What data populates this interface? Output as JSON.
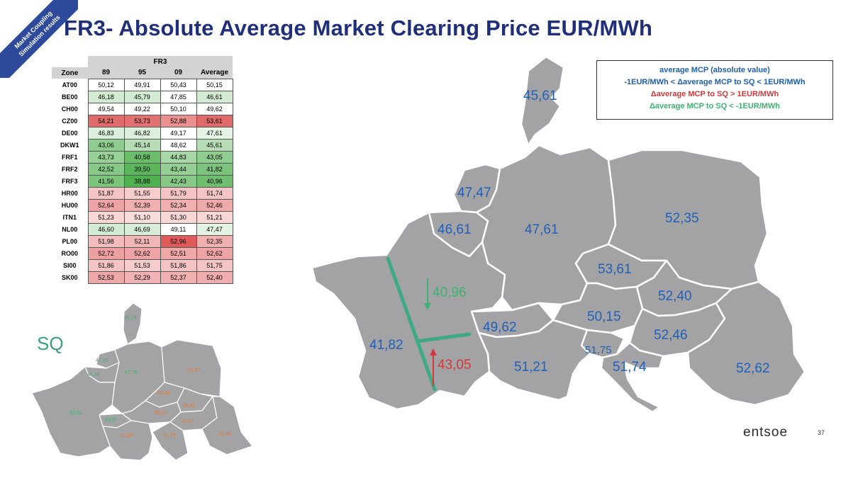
{
  "ribbon": {
    "line1": "Market Coupling",
    "line2": "Simulation results"
  },
  "title": "FR3- Absolute Average Market Clearing Price EUR/MWh",
  "colors": {
    "green": "#3cb371",
    "red": "#d23a3a",
    "blue": "#2060b8",
    "map_fill": "#a3a3a5",
    "teal_line": "#3daa84"
  },
  "table": {
    "group_header": "FR3",
    "headers": [
      "Zone",
      "89",
      "95",
      "09",
      "Average"
    ],
    "rows": [
      {
        "zone": "AT00",
        "cells": [
          {
            "v": "50,12",
            "bg": "#ffffff"
          },
          {
            "v": "49,91",
            "bg": "#ffffff"
          },
          {
            "v": "50,43",
            "bg": "#ffffff"
          },
          {
            "v": "50,15",
            "bg": "#ffffff"
          }
        ]
      },
      {
        "zone": "BE00",
        "cells": [
          {
            "v": "46,18",
            "bg": "#d3ead3"
          },
          {
            "v": "45,79",
            "bg": "#d3ead3"
          },
          {
            "v": "47,85",
            "bg": "#ffffff"
          },
          {
            "v": "46,61",
            "bg": "#d3ead3"
          }
        ]
      },
      {
        "zone": "CH00",
        "cells": [
          {
            "v": "49,54",
            "bg": "#ffffff"
          },
          {
            "v": "49,22",
            "bg": "#ffffff"
          },
          {
            "v": "50,10",
            "bg": "#ffffff"
          },
          {
            "v": "49,62",
            "bg": "#ffffff"
          }
        ]
      },
      {
        "zone": "CZ00",
        "cells": [
          {
            "v": "54,21",
            "bg": "#e06a6a"
          },
          {
            "v": "53,73",
            "bg": "#e27070"
          },
          {
            "v": "52,88",
            "bg": "#ea9090"
          },
          {
            "v": "53,61",
            "bg": "#e06a6a"
          }
        ]
      },
      {
        "zone": "DE00",
        "cells": [
          {
            "v": "46,83",
            "bg": "#dcefdc"
          },
          {
            "v": "46,82",
            "bg": "#dcefdc"
          },
          {
            "v": "49,17",
            "bg": "#ffffff"
          },
          {
            "v": "47,61",
            "bg": "#e6f3e6"
          }
        ]
      },
      {
        "zone": "DKW1",
        "cells": [
          {
            "v": "43,06",
            "bg": "#8fcc8f"
          },
          {
            "v": "45,14",
            "bg": "#b6ddb6"
          },
          {
            "v": "48,62",
            "bg": "#ffffff"
          },
          {
            "v": "45,61",
            "bg": "#b6ddb6"
          }
        ]
      },
      {
        "zone": "FRF1",
        "cells": [
          {
            "v": "43,73",
            "bg": "#98d098"
          },
          {
            "v": "40,58",
            "bg": "#6bbd6b"
          },
          {
            "v": "44,83",
            "bg": "#a8d7a8"
          },
          {
            "v": "43,05",
            "bg": "#8fcc8f"
          }
        ]
      },
      {
        "zone": "FRF2",
        "cells": [
          {
            "v": "42,52",
            "bg": "#88c988"
          },
          {
            "v": "39,50",
            "bg": "#5bb65b"
          },
          {
            "v": "43,44",
            "bg": "#95cf95"
          },
          {
            "v": "41,82",
            "bg": "#7cc37c"
          }
        ]
      },
      {
        "zone": "FRF3",
        "cells": [
          {
            "v": "41,56",
            "bg": "#7cc37c"
          },
          {
            "v": "38,88",
            "bg": "#4fb04f"
          },
          {
            "v": "42,43",
            "bg": "#88c988"
          },
          {
            "v": "40,96",
            "bg": "#70be70"
          }
        ]
      },
      {
        "zone": "HR00",
        "cells": [
          {
            "v": "51,87",
            "bg": "#f4c4c4"
          },
          {
            "v": "51,55",
            "bg": "#f6cccc"
          },
          {
            "v": "51,79",
            "bg": "#f4c4c4"
          },
          {
            "v": "51,74",
            "bg": "#f4c4c4"
          }
        ]
      },
      {
        "zone": "HU00",
        "cells": [
          {
            "v": "52,64",
            "bg": "#eea4a4"
          },
          {
            "v": "52,39",
            "bg": "#f0b0b0"
          },
          {
            "v": "52,34",
            "bg": "#f0b0b0"
          },
          {
            "v": "52,46",
            "bg": "#efaaaa"
          }
        ]
      },
      {
        "zone": "ITN1",
        "cells": [
          {
            "v": "51,23",
            "bg": "#f8d6d6"
          },
          {
            "v": "51,10",
            "bg": "#f9dcdc"
          },
          {
            "v": "51,30",
            "bg": "#f8d6d6"
          },
          {
            "v": "51,21",
            "bg": "#f8d6d6"
          }
        ]
      },
      {
        "zone": "NL00",
        "cells": [
          {
            "v": "46,60",
            "bg": "#d3ead3"
          },
          {
            "v": "46,69",
            "bg": "#d8ecd8"
          },
          {
            "v": "49,11",
            "bg": "#ffffff"
          },
          {
            "v": "47,47",
            "bg": "#e4f2e4"
          }
        ]
      },
      {
        "zone": "PL00",
        "cells": [
          {
            "v": "51,98",
            "bg": "#f2bcbc"
          },
          {
            "v": "52,11",
            "bg": "#f1b6b6"
          },
          {
            "v": "52,96",
            "bg": "#e05a5a"
          },
          {
            "v": "52,35",
            "bg": "#f0b0b0"
          }
        ]
      },
      {
        "zone": "RO00",
        "cells": [
          {
            "v": "52,72",
            "bg": "#eda0a0"
          },
          {
            "v": "52,62",
            "bg": "#eea4a4"
          },
          {
            "v": "52,51",
            "bg": "#efa8a8"
          },
          {
            "v": "52,62",
            "bg": "#eea4a4"
          }
        ]
      },
      {
        "zone": "SI00",
        "cells": [
          {
            "v": "51,86",
            "bg": "#f4c4c4"
          },
          {
            "v": "51,53",
            "bg": "#f6cccc"
          },
          {
            "v": "51,86",
            "bg": "#f4c4c4"
          },
          {
            "v": "51,75",
            "bg": "#f4c4c4"
          }
        ]
      },
      {
        "zone": "SK00",
        "cells": [
          {
            "v": "52,53",
            "bg": "#efa8a8"
          },
          {
            "v": "52,29",
            "bg": "#f0b2b2"
          },
          {
            "v": "52,37",
            "bg": "#f0b0b0"
          },
          {
            "v": "52,40",
            "bg": "#f0aeae"
          }
        ]
      }
    ]
  },
  "legend": {
    "line1": "average MCP (absolute value)",
    "line2": "-1EUR/MWh < Δaverage MCP to SQ < 1EUR/MWh",
    "line3": "Δaverage MCP to SQ > 1EUR/MWh",
    "line4": "Δaverage MCP to SQ < -1EUR/MWh"
  },
  "main_map": {
    "labels": {
      "dk": "45,61",
      "nl": "47,47",
      "be": "46,61",
      "de": "47,61",
      "pl": "52,35",
      "cz": "53,61",
      "sk": "52,40",
      "at": "50,15",
      "ch": "49,62",
      "hu": "52,46",
      "si": "51,75",
      "hr": "51,74",
      "ro": "52,62",
      "it": "51,21",
      "frf3": "40,96",
      "frf2": "41,82",
      "frf1": "43,05"
    }
  },
  "sq_map": {
    "title": "SQ",
    "labels": {
      "dk": "45,79",
      "nl": "47,98",
      "be": "47,38",
      "de": "47,76",
      "pl": "52,37",
      "cz": "52,40",
      "at": "50,37",
      "sk": "52,52",
      "hu": "52,51",
      "ro": "52,74",
      "fr": "42,01",
      "ch": "49,87",
      "it": "51,04",
      "hr": "51,73"
    }
  },
  "footer": {
    "brand": "entsoe",
    "page": "37"
  }
}
